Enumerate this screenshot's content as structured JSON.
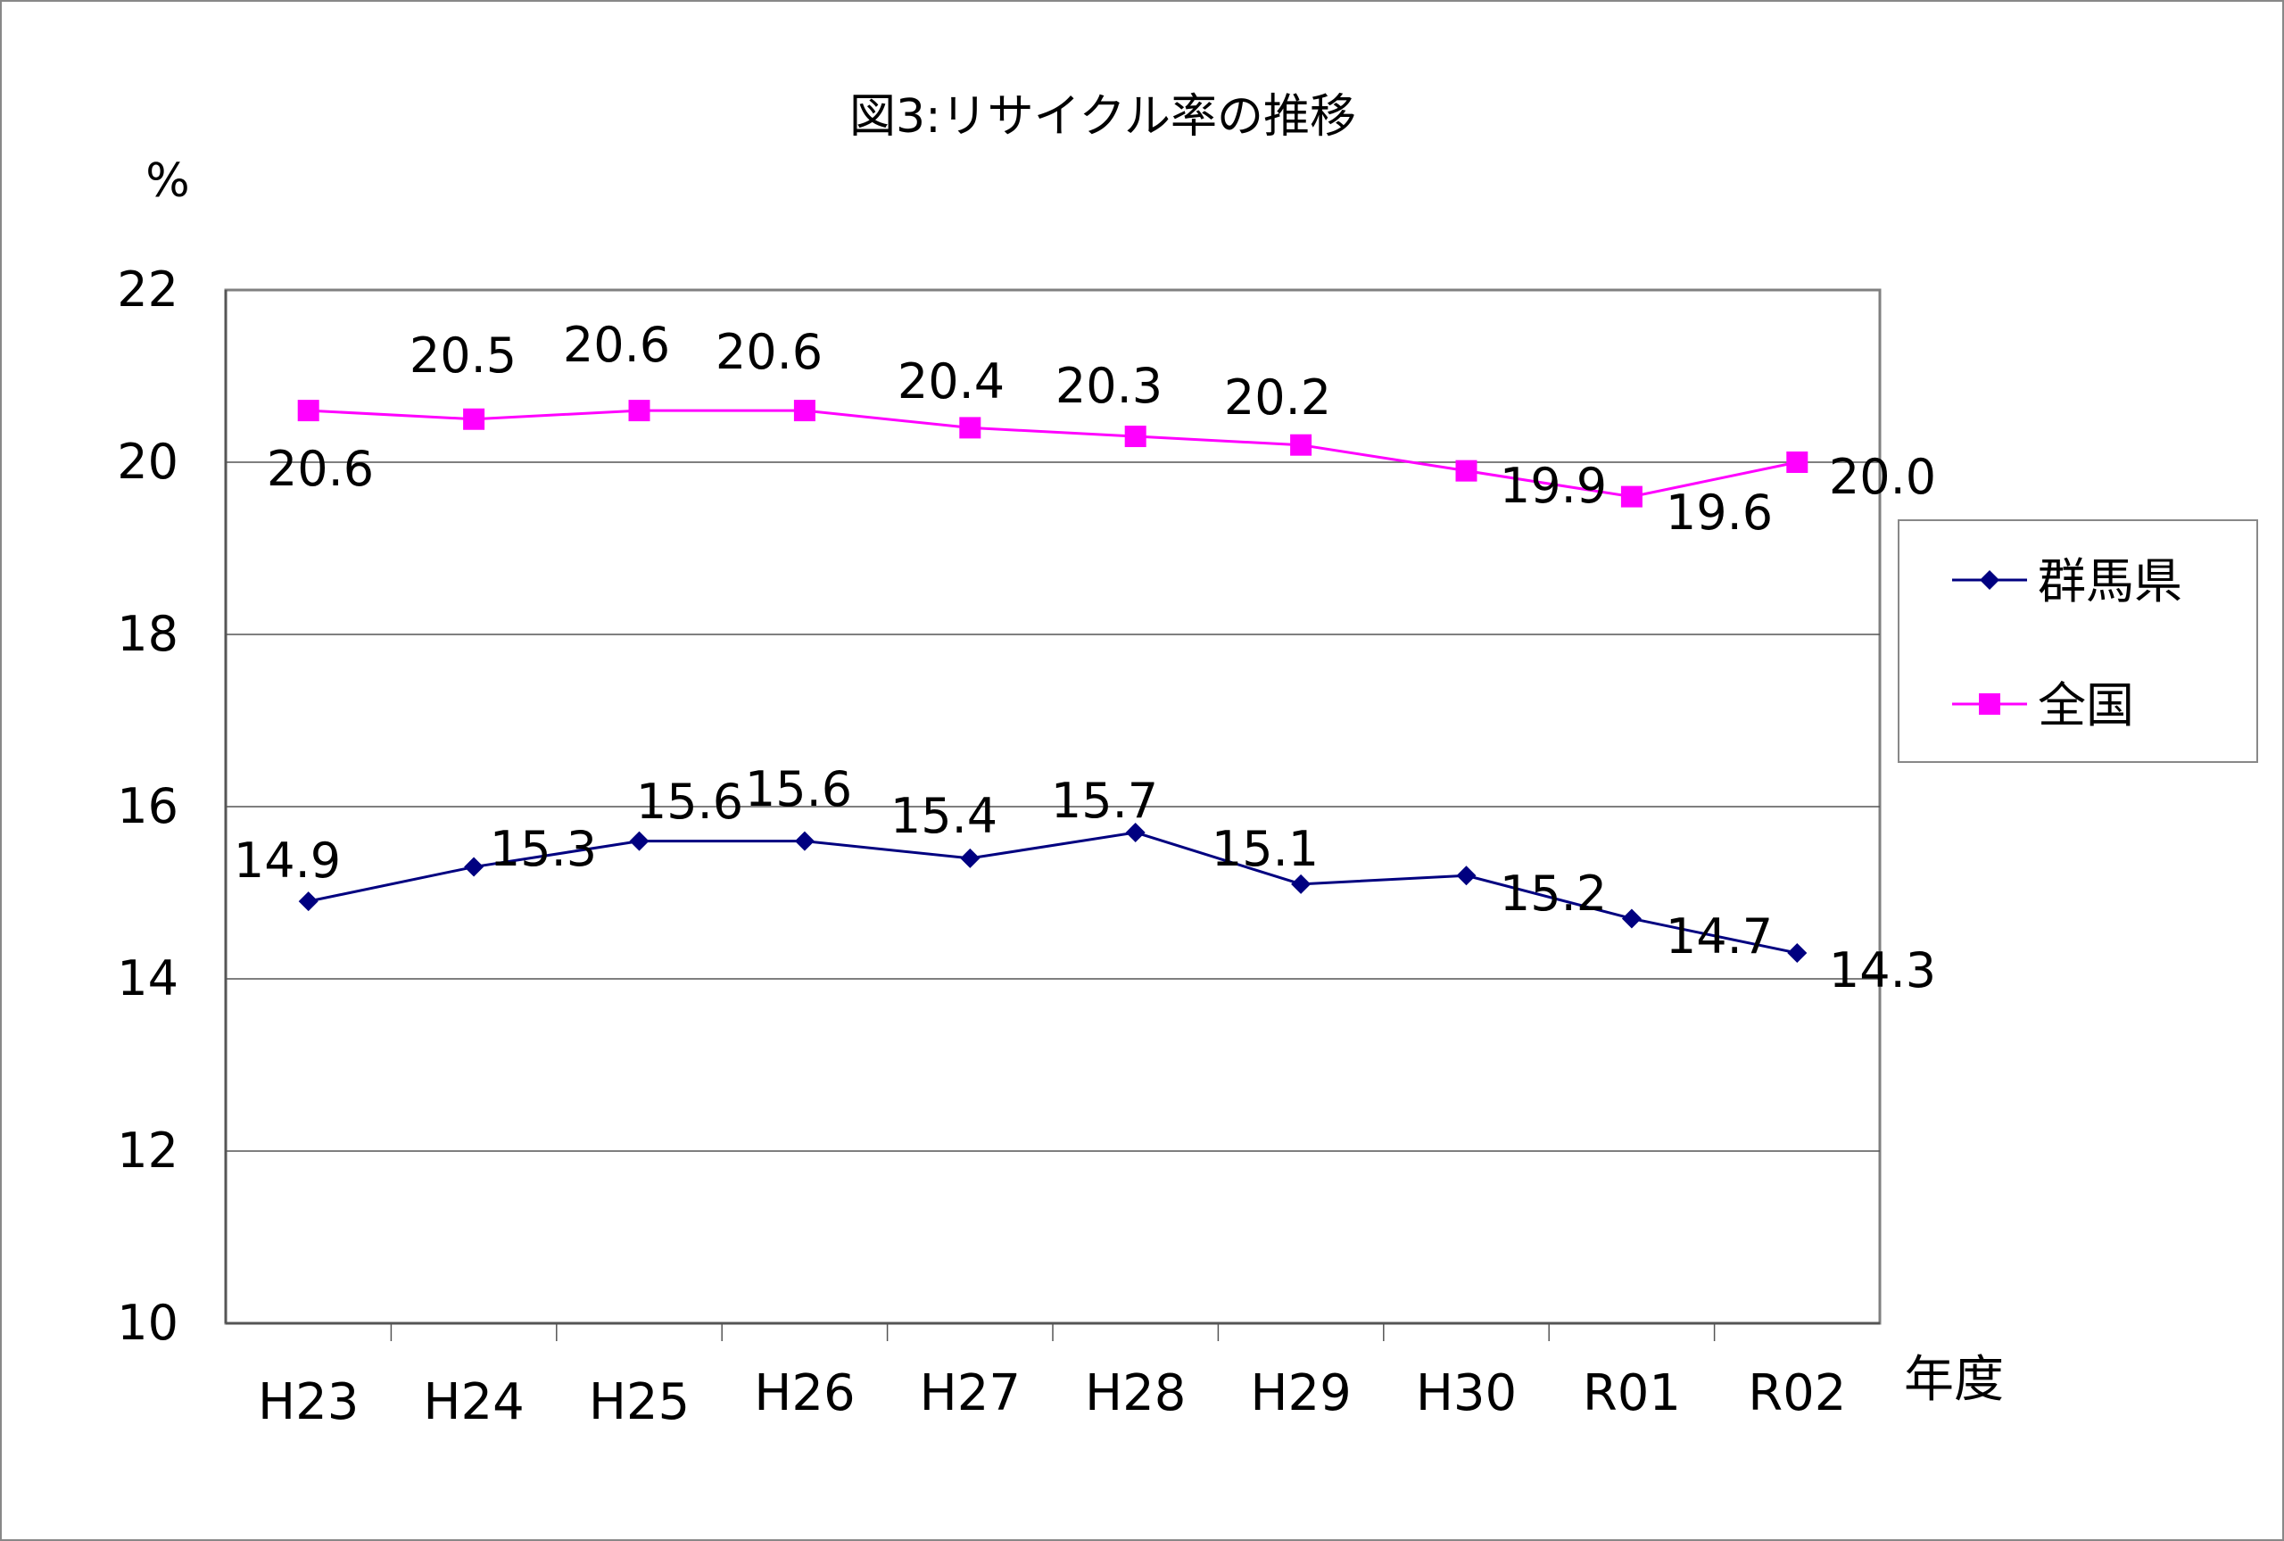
{
  "chart_data": {
    "type": "line",
    "title": "図3:リサイクル率の推移",
    "ylabel": "%",
    "xlabel": "年度",
    "ylim": [
      10,
      22
    ],
    "yticks": [
      "10",
      "12",
      "14",
      "16",
      "18",
      "20",
      "22"
    ],
    "grid": true,
    "legend_position": "right",
    "categories": [
      "H23",
      "H24",
      "H25",
      "H26",
      "H27",
      "H28",
      "H29",
      "H30",
      "R01",
      "R02"
    ],
    "series": [
      {
        "name": "群馬県",
        "color": "#000080",
        "marker": "diamond",
        "values": [
          14.9,
          15.3,
          15.6,
          15.6,
          15.4,
          15.7,
          15.1,
          15.2,
          14.7,
          14.3
        ],
        "labels": [
          "14.9",
          "15.3",
          "15.6",
          "15.6",
          "15.4",
          "15.7",
          "15.1",
          "15.2",
          "14.7",
          "14.3"
        ]
      },
      {
        "name": "全国",
        "color": "#FF00FF",
        "marker": "square",
        "values": [
          20.6,
          20.5,
          20.6,
          20.6,
          20.4,
          20.3,
          20.2,
          19.9,
          19.6,
          20.0
        ],
        "labels": [
          "20.6",
          "20.5",
          "20.6",
          "20.6",
          "20.4",
          "20.3",
          "20.2",
          "19.9",
          "19.6",
          "20.0"
        ]
      }
    ]
  }
}
